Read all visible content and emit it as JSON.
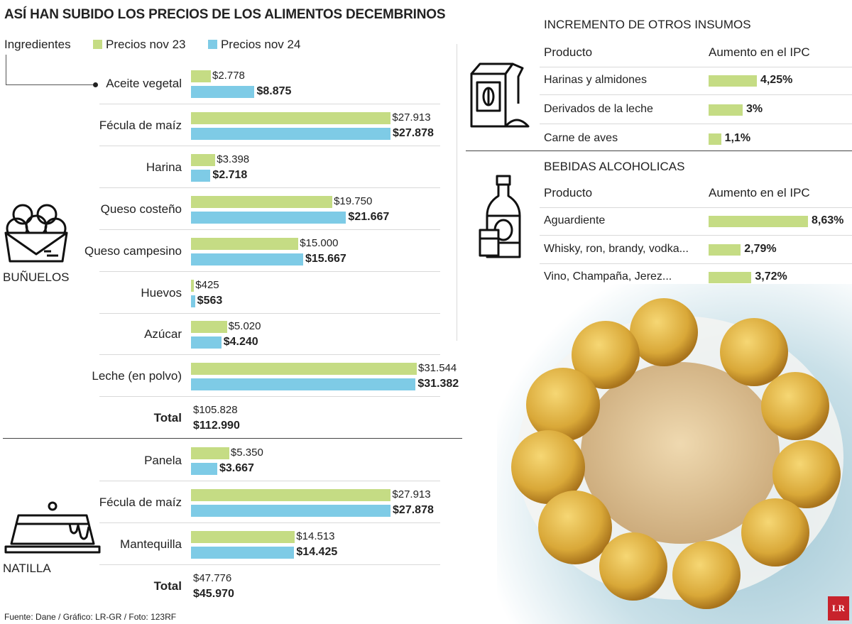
{
  "title": "ASÍ HAN SUBIDO LOS PRECIOS DE LOS ALIMENTOS DECEMBRINOS",
  "legend": {
    "ingredients": "Ingredientes",
    "nov23": "Precios nov 23",
    "nov24": "Precios nov 24"
  },
  "colors": {
    "nov23": "#c5dc84",
    "nov24": "#7ecbe6",
    "divider": "#d9d9d9",
    "text": "#222222"
  },
  "chart_data": [
    {
      "type": "bar",
      "orientation": "horizontal",
      "section": "BUÑUELOS",
      "categories": [
        "Aceite vegetal",
        "Fécula de maíz",
        "Harina",
        "Queso costeño",
        "Queso campesino",
        "Huevos",
        "Azúcar",
        "Leche (en polvo)"
      ],
      "series": [
        {
          "name": "Precios nov 23",
          "values": [
            2778,
            27913,
            3398,
            19750,
            15000,
            425,
            5020,
            31544
          ],
          "labels": [
            "$2.778",
            "$27.913",
            "$3.398",
            "$19.750",
            "$15.000",
            "$425",
            "$5.020",
            "$31.544"
          ]
        },
        {
          "name": "Precios nov 24",
          "values": [
            8875,
            27878,
            2718,
            21667,
            15667,
            563,
            4240,
            31382
          ],
          "labels": [
            "$8.875",
            "$27.878",
            "$2.718",
            "$21.667",
            "$15.667",
            "$563",
            "$4.240",
            "$31.382"
          ]
        }
      ],
      "total_label": "Total",
      "total": {
        "nov23": "$105.828",
        "nov24": "$112.990"
      },
      "xlim": [
        0,
        31544
      ]
    },
    {
      "type": "bar",
      "orientation": "horizontal",
      "section": "NATILLA",
      "categories": [
        "Panela",
        "Fécula de maíz",
        "Mantequilla"
      ],
      "series": [
        {
          "name": "Precios nov 23",
          "values": [
            5350,
            27913,
            14513
          ],
          "labels": [
            "$5.350",
            "$27.913",
            "$14.513"
          ]
        },
        {
          "name": "Precios nov 24",
          "values": [
            3667,
            27878,
            14425
          ],
          "labels": [
            "$3.667",
            "$27.878",
            "$14.425"
          ]
        }
      ],
      "total_label": "Total",
      "total": {
        "nov23": "$47.776",
        "nov24": "$45.970"
      },
      "xlim": [
        0,
        31544
      ]
    },
    {
      "type": "bar",
      "orientation": "horizontal",
      "title": "INCREMENTO DE OTROS INSUMOS",
      "header": {
        "product": "Producto",
        "value": "Aumento en el IPC"
      },
      "categories": [
        "Harinas y almidones",
        "Derivados de la leche",
        "Carne de aves"
      ],
      "values": [
        4.25,
        3,
        1.1
      ],
      "labels": [
        "4,25%",
        "3%",
        "1,1%"
      ],
      "xlim": [
        0,
        8.63
      ]
    },
    {
      "type": "bar",
      "orientation": "horizontal",
      "title": "BEBIDAS ALCOHOLICAS",
      "header": {
        "product": "Producto",
        "value": "Aumento en el IPC"
      },
      "categories": [
        "Aguardiente",
        "Whisky, ron, brandy, vodka...",
        "Vino, Champaña, Jerez..."
      ],
      "values": [
        8.63,
        2.79,
        3.72
      ],
      "labels": [
        "8,63%",
        "2,79%",
        "3,72%"
      ],
      "xlim": [
        0,
        8.63
      ]
    }
  ],
  "icons": [
    "bunuelos-basket-icon",
    "natilla-dish-icon",
    "flour-bag-icon",
    "liquor-bottle-icon"
  ],
  "source": "Fuente: Dane / Gráfico: LR-GR / Foto: 123RF",
  "brand": "LR"
}
